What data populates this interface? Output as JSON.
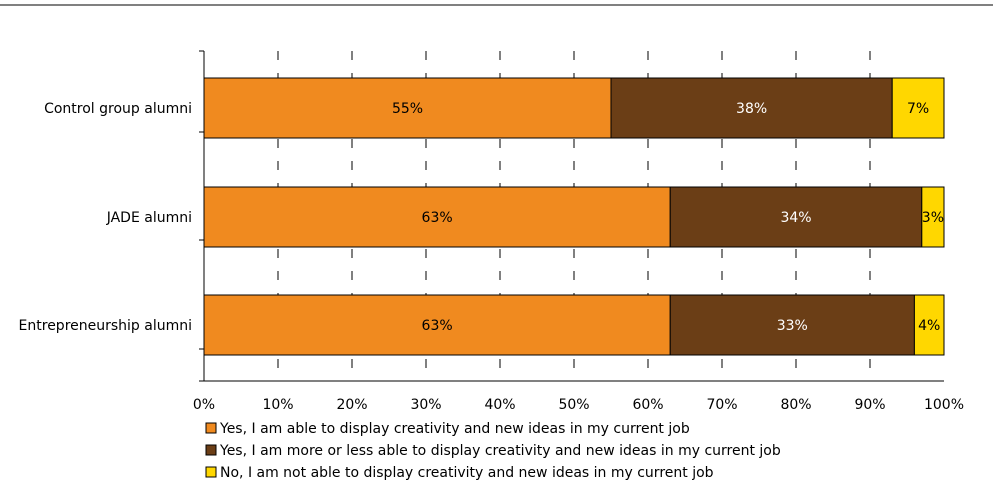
{
  "chart_data": {
    "type": "bar",
    "orientation": "horizontal",
    "stacked": true,
    "categories": [
      "Control group alumni",
      "JADE alumni",
      "Entrepreneurship alumni"
    ],
    "series": [
      {
        "name": "Yes, I am able to display creativity and new ideas in my current job",
        "values": [
          55,
          63,
          63
        ],
        "labels": [
          "55%",
          "63%",
          "63%"
        ],
        "color": "#F08A1F",
        "label_color": "#000000"
      },
      {
        "name": "Yes, I am more or less able to display creativity and new ideas in my current job",
        "values": [
          38,
          34,
          33
        ],
        "labels": [
          "38%",
          "34%",
          "33%"
        ],
        "color": "#6B3E16",
        "label_color": "#ffffff"
      },
      {
        "name": "No, I am not able to display creativity and new ideas in my current job",
        "values": [
          7,
          3,
          4
        ],
        "labels": [
          "7%",
          "3%",
          "4%"
        ],
        "color": "#FFD700",
        "label_color": "#000000"
      }
    ],
    "xlim": [
      0,
      100
    ],
    "xticks": [
      0,
      10,
      20,
      30,
      40,
      50,
      60,
      70,
      80,
      90,
      100
    ],
    "xtick_labels": [
      "0%",
      "10%",
      "20%",
      "30%",
      "40%",
      "50%",
      "60%",
      "70%",
      "80%",
      "90%",
      "100%"
    ],
    "grid": "vertical-dashed",
    "legend_position": "bottom-left"
  }
}
